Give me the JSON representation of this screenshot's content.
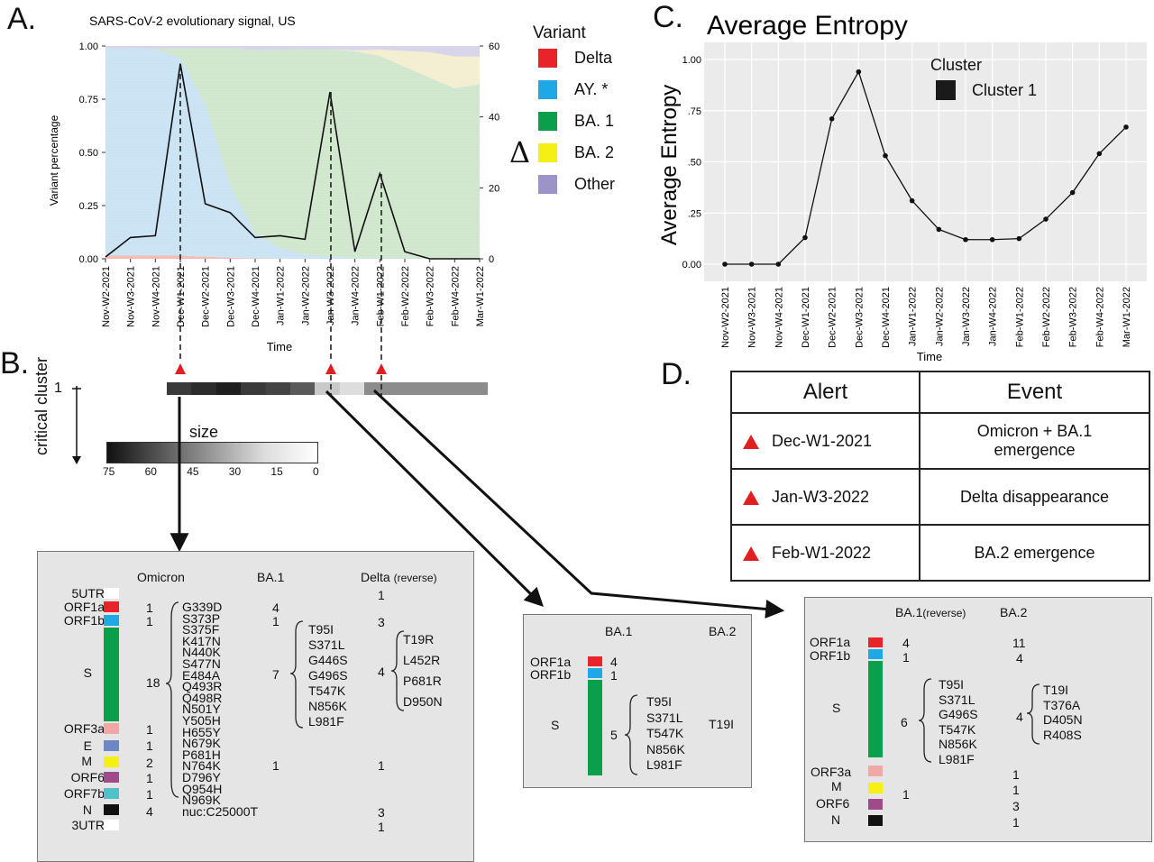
{
  "panels": {
    "a": "A.",
    "b": "B.",
    "c": "C.",
    "d": "D."
  },
  "colors": {
    "delta": "#e8242a",
    "ay": "#1ea8e8",
    "ba1": "#0a9f4b",
    "ba2": "#f5ef14",
    "other": "#9b94c8",
    "alert": "#e02020",
    "panel_bg": "#ebebeb"
  },
  "panel_a": {
    "title": "SARS-CoV-2 evolutionary signal, US",
    "ylabel": "Variant percentage",
    "xlabel": "Time",
    "y2label": "Δ",
    "legend_title": "Variant",
    "legend": [
      {
        "label": "Delta",
        "color": "#e8242a"
      },
      {
        "label": "AY. *",
        "color": "#1ea8e8"
      },
      {
        "label": "BA. 1",
        "color": "#0a9f4b"
      },
      {
        "label": "BA. 2",
        "color": "#f5ef14"
      },
      {
        "label": "Other",
        "color": "#9b94c8"
      }
    ]
  },
  "panel_b": {
    "cluster_axis_label": "critical cluster",
    "cluster_id": "1",
    "size_label": "size",
    "size_ticks": [
      "75",
      "60",
      "45",
      "30",
      "15",
      "0"
    ],
    "cluster_cells": [
      "#3a3a3a",
      "#2c2c2c",
      "#1f1f1f",
      "#3a3a3a",
      "#444444",
      "#5a5a5a",
      "#c9c9c9",
      "#dddddd",
      "#8c8c8c",
      "#8c8c8c",
      "#8c8c8c",
      "#8c8c8c",
      "#8c8c8c"
    ]
  },
  "box1": {
    "headers": [
      "Omicron",
      "BA.1",
      "Delta",
      "(reverse)"
    ],
    "genes": [
      {
        "name": "5UTR",
        "color": "#ffffff",
        "omicron": "",
        "ba1": "",
        "delta": "1"
      },
      {
        "name": "ORF1a",
        "color": "#e8242a",
        "omicron": "1",
        "ba1": "4",
        "delta": ""
      },
      {
        "name": "ORF1b",
        "color": "#1ea8e8",
        "omicron": "1",
        "ba1": "1",
        "delta": "3"
      },
      {
        "name": "S",
        "color": "#0a9f4b",
        "omicron": "18",
        "ba1": "7",
        "delta": "4"
      },
      {
        "name": "ORF3a",
        "color": "#f2a7a7",
        "omicron": "1",
        "ba1": "",
        "delta": ""
      },
      {
        "name": "E",
        "color": "#6f86c6",
        "omicron": "1",
        "ba1": "",
        "delta": ""
      },
      {
        "name": "M",
        "color": "#f5ef14",
        "omicron": "2",
        "ba1": "1",
        "delta": "1"
      },
      {
        "name": "ORF6",
        "color": "#a04a8a",
        "omicron": "1",
        "ba1": "",
        "delta": ""
      },
      {
        "name": "ORF7b",
        "color": "#4fc1c9",
        "omicron": "1",
        "ba1": "",
        "delta": ""
      },
      {
        "name": "N",
        "color": "#111111",
        "omicron": "4",
        "ba1": "",
        "delta": "3"
      },
      {
        "name": "3UTR",
        "color": "#ffffff",
        "omicron": "",
        "ba1": "",
        "delta": "1"
      }
    ],
    "omicron_mutations": [
      "G339D",
      "S373P",
      "S375F",
      "K417N",
      "N440K",
      "S477N",
      "E484A",
      "Q493R",
      "Q498R",
      "N501Y",
      "Y505H",
      "H655Y",
      "N679K",
      "P681H",
      "N764K",
      "D796Y",
      "Q954H",
      "N969K",
      "nuc:C25000T"
    ],
    "ba1_mutations": [
      "T95I",
      "S371L",
      "G446S",
      "G496S",
      "T547K",
      "N856K",
      "L981F"
    ],
    "delta_mutations": [
      "T19R",
      "L452R",
      "P681R",
      "D950N"
    ]
  },
  "box2": {
    "headers": [
      "BA.1",
      "BA.2"
    ],
    "genes": [
      {
        "name": "ORF1a",
        "color": "#e8242a",
        "ba1": "4"
      },
      {
        "name": "ORF1b",
        "color": "#1ea8e8",
        "ba1": "1"
      },
      {
        "name": "S",
        "color": "#0a9f4b",
        "ba1": "5"
      }
    ],
    "ba1_mutations": [
      "T95I",
      "S371L",
      "T547K",
      "N856K",
      "L981F"
    ],
    "ba2_mutation": "T19I"
  },
  "box3": {
    "headers": [
      "BA.1",
      "(reverse)",
      "BA.2"
    ],
    "genes": [
      {
        "name": "ORF1a",
        "color": "#e8242a",
        "ba1": "4",
        "ba2": "11"
      },
      {
        "name": "ORF1b",
        "color": "#1ea8e8",
        "ba1": "1",
        "ba2": "4"
      },
      {
        "name": "S",
        "color": "#0a9f4b",
        "ba1": "6",
        "ba2": "4"
      },
      {
        "name": "ORF3a",
        "color": "#f2a7a7",
        "ba1": "",
        "ba2": "1"
      },
      {
        "name": "M",
        "color": "#f5ef14",
        "ba1": "1",
        "ba2": "1"
      },
      {
        "name": "ORF6",
        "color": "#a04a8a",
        "ba1": "",
        "ba2": "3"
      },
      {
        "name": "N",
        "color": "#111111",
        "ba1": "",
        "ba2": "1"
      }
    ],
    "ba1_mutations": [
      "T95I",
      "S371L",
      "G496S",
      "T547K",
      "N856K",
      "L981F"
    ],
    "ba2_mutations": [
      "T19I",
      "T376A",
      "D405N",
      "R408S"
    ]
  },
  "alerts_table": {
    "headers": [
      "Alert",
      "Event"
    ],
    "rows": [
      {
        "alert": "Dec-W1-2021",
        "event": "Omicron + BA.1 emergence"
      },
      {
        "alert": "Jan-W3-2022",
        "event": "Delta disappearance"
      },
      {
        "alert": "Feb-W1-2022",
        "event": "BA.2 emergence"
      }
    ]
  },
  "chart_data": [
    {
      "type": "area",
      "title": "SARS-CoV-2 evolutionary signal, US",
      "xlabel": "Time",
      "ylabel": "Variant percentage",
      "y2label": "Δ",
      "x": [
        "Nov-W2-2021",
        "Nov-W3-2021",
        "Nov-W4-2021",
        "Dec-W1-2021",
        "Dec-W2-2021",
        "Dec-W3-2021",
        "Dec-W4-2021",
        "Jan-W1-2022",
        "Jan-W2-2022",
        "Jan-W3-2022",
        "Jan-W4-2022",
        "Feb-W1-2022",
        "Feb-W2-2022",
        "Feb-W3-2022",
        "Feb-W4-2022",
        "Mar-W1-2022"
      ],
      "ylim": [
        0,
        1
      ],
      "yticks": [
        "0.00",
        "0.25",
        "0.50",
        "0.75",
        "1.00"
      ],
      "y2lim": [
        0,
        60
      ],
      "y2ticks": [
        "0",
        "20",
        "40",
        "60"
      ],
      "series": [
        {
          "name": "Delta",
          "values": [
            0.015,
            0.015,
            0.015,
            0.015,
            0.01,
            0.005,
            0.002,
            0.001,
            0,
            0,
            0,
            0,
            0,
            0,
            0,
            0
          ]
        },
        {
          "name": "AY. *",
          "values": [
            0.975,
            0.975,
            0.97,
            0.93,
            0.72,
            0.34,
            0.12,
            0.05,
            0.02,
            0.01,
            0.005,
            0.003,
            0.002,
            0.001,
            0.001,
            0.001
          ]
        },
        {
          "name": "BA. 1",
          "values": [
            0,
            0,
            0,
            0.045,
            0.26,
            0.645,
            0.858,
            0.93,
            0.965,
            0.975,
            0.97,
            0.95,
            0.9,
            0.85,
            0.8,
            0.82
          ]
        },
        {
          "name": "BA. 2",
          "values": [
            0,
            0,
            0,
            0,
            0,
            0,
            0,
            0,
            0,
            0,
            0.005,
            0.03,
            0.075,
            0.12,
            0.15,
            0.13
          ]
        },
        {
          "name": "Other",
          "values": [
            0.01,
            0.01,
            0.015,
            0.01,
            0.01,
            0.01,
            0.02,
            0.019,
            0.015,
            0.015,
            0.02,
            0.017,
            0.023,
            0.029,
            0.049,
            0.049
          ]
        }
      ],
      "delta_line": [
        0.5,
        6,
        6.5,
        55,
        15.5,
        13,
        6,
        6.5,
        5.5,
        47,
        2,
        24,
        2,
        0,
        0,
        0
      ],
      "alerts": [
        "Dec-W1-2021",
        "Jan-W3-2022",
        "Feb-W1-2022"
      ]
    },
    {
      "type": "line",
      "title": "Average Entropy",
      "xlabel": "Time",
      "ylabel": "Average Entropy",
      "legend_title": "Cluster",
      "legend": [
        "Cluster 1"
      ],
      "x": [
        "Nov-W2-2021",
        "Nov-W3-2021",
        "Nov-W4-2021",
        "Dec-W1-2021",
        "Dec-W2-2021",
        "Dec-W3-2021",
        "Dec-W4-2021",
        "Jan-W1-2022",
        "Jan-W2-2022",
        "Jan-W3-2022",
        "Jan-W4-2022",
        "Feb-W1-2022",
        "Feb-W2-2022",
        "Feb-W3-2022",
        "Feb-W4-2022",
        "Mar-W1-2022"
      ],
      "ylim": [
        0,
        1
      ],
      "yticks": [
        "0.00",
        ".25",
        ".50",
        ".75",
        "1.00"
      ],
      "ytick_values": [
        0,
        0.25,
        0.5,
        0.75,
        1
      ],
      "values": [
        0,
        0,
        0,
        0.13,
        0.71,
        0.94,
        0.53,
        0.31,
        0.17,
        0.12,
        0.12,
        0.125,
        0.22,
        0.35,
        0.54,
        0.67
      ]
    }
  ]
}
